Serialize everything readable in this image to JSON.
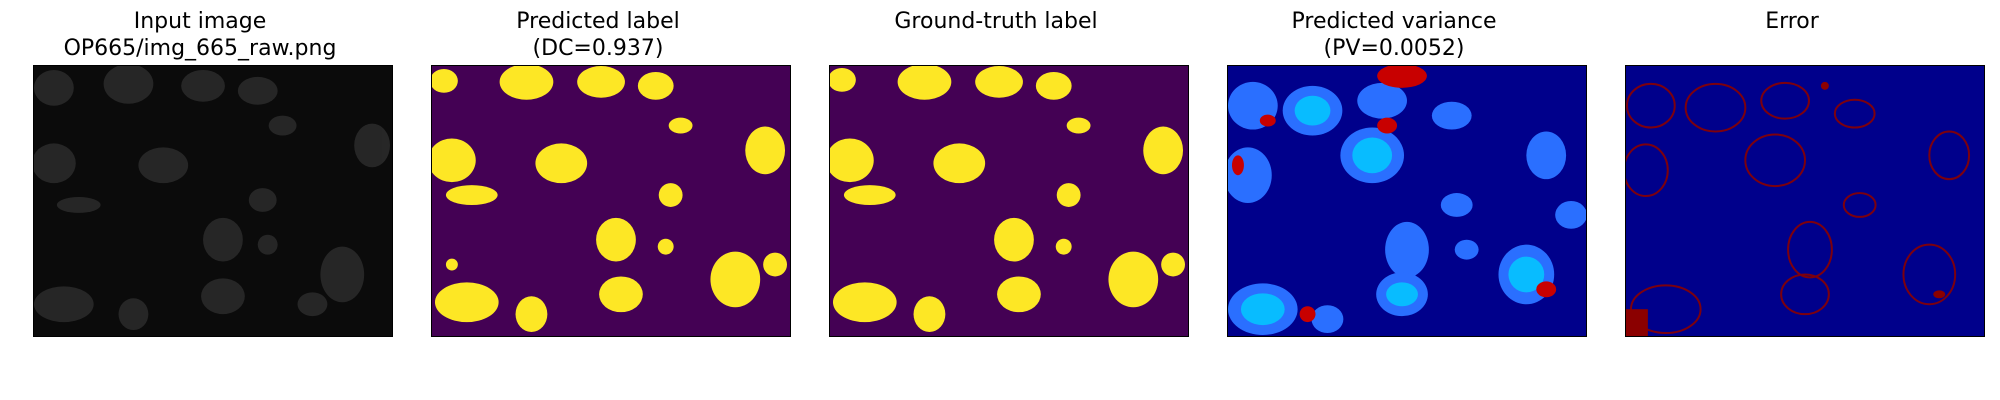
{
  "figure": {
    "panels": [
      {
        "id": "input",
        "title_lines": [
          "Input image",
          "OP665/img_665_raw.png"
        ]
      },
      {
        "id": "pred_label",
        "title_lines": [
          "Predicted label",
          "(DC=0.937)"
        ]
      },
      {
        "id": "gt_label",
        "title_lines": [
          "Ground-truth label"
        ]
      },
      {
        "id": "pred_var",
        "title_lines": [
          "Predicted variance",
          "(PV=0.0052)"
        ]
      },
      {
        "id": "error",
        "title_lines": [
          "Error"
        ]
      }
    ],
    "colors": {
      "input_background": "#0a0a0a",
      "input_nuclei": "#2b2b2b",
      "label_background": "#440154",
      "label_foreground": "#fde725",
      "variance_background": "#00008b",
      "variance_mid": "#1f6fff",
      "variance_high": "#00c8ff",
      "variance_hot": "#c80000",
      "error_background": "#00008b",
      "error_edges": "#8b0000"
    }
  }
}
